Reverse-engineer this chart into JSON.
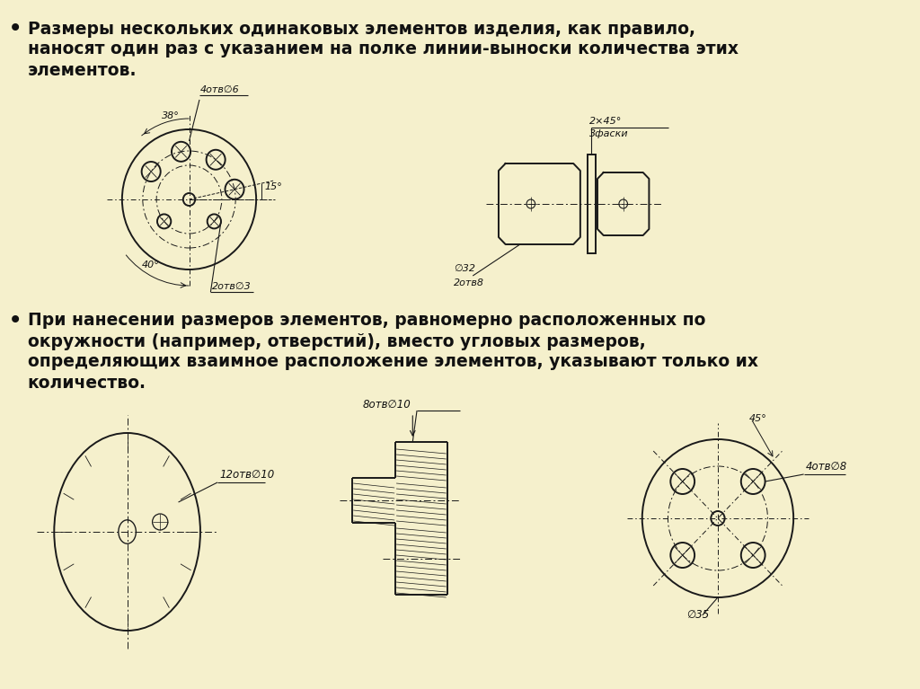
{
  "bg_color": "#f5f0cc",
  "line_color": "#1a1a1a",
  "text_color": "#111111",
  "bullet1": [
    "Размеры нескольких одинаковых элементов изделия, как правило,",
    "наносят один раз с указанием на полке линии-выноски количества этих",
    "элементов."
  ],
  "bullet2": [
    "При нанесении размеров элементов, равномерно расположенных по",
    "окружности (например, отверстий), вместо угловых размеров,",
    "определяющих взаимное расположение элементов, указывают только их",
    "количество."
  ],
  "lw": 1.4,
  "tlw": 0.7
}
